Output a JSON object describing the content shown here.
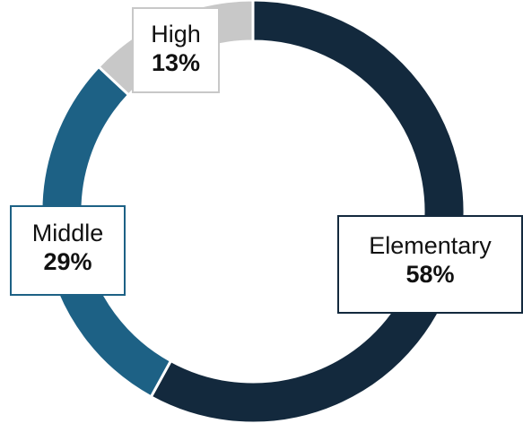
{
  "chart_data": {
    "type": "pie",
    "variant": "donut",
    "title": "",
    "slices": [
      {
        "label": "Elementary",
        "value": 58,
        "display": "58%",
        "color": "#13293d"
      },
      {
        "label": "Middle",
        "value": 29,
        "display": "29%",
        "color": "#1d6185"
      },
      {
        "label": "High",
        "value": 13,
        "display": "13%",
        "color": "#c8c8c8"
      }
    ],
    "start_angle": "12 o'clock, clockwise",
    "legend": "none"
  }
}
